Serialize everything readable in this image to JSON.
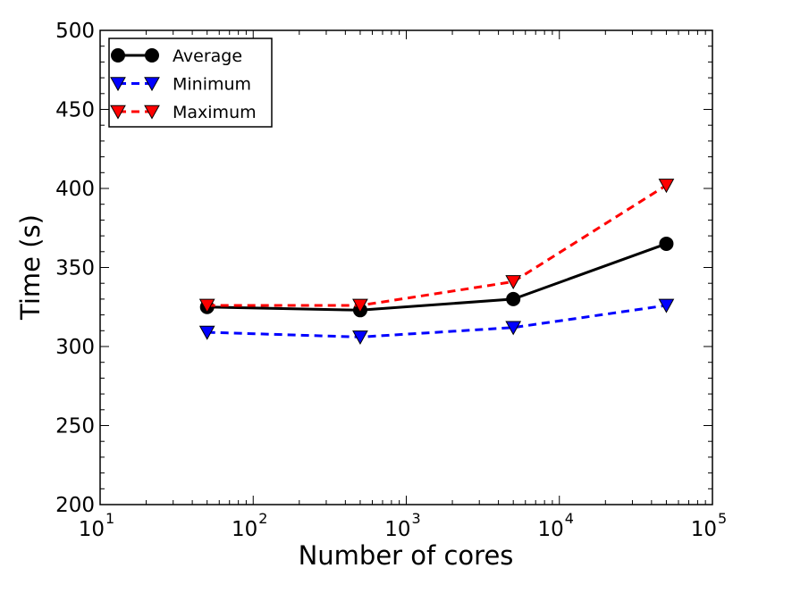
{
  "chart_data": {
    "type": "line",
    "title": "",
    "xlabel": "Number of cores",
    "ylabel": "Time (s)",
    "xscale": "log",
    "xlim": [
      10,
      100000
    ],
    "ylim": [
      200,
      500
    ],
    "x_ticks": [
      {
        "base": "10",
        "exp": "1"
      },
      {
        "base": "10",
        "exp": "2"
      },
      {
        "base": "10",
        "exp": "3"
      },
      {
        "base": "10",
        "exp": "4"
      },
      {
        "base": "10",
        "exp": "5"
      }
    ],
    "y_ticks": [
      "200",
      "250",
      "300",
      "350",
      "400",
      "450",
      "500"
    ],
    "x": [
      50,
      500,
      5000,
      50000
    ],
    "series": [
      {
        "name": "Average",
        "values": [
          325,
          323,
          330,
          365
        ],
        "color": "#000000",
        "linestyle": "solid",
        "marker": "circle"
      },
      {
        "name": "Minimum",
        "values": [
          309,
          306,
          312,
          326
        ],
        "color": "#0000ff",
        "linestyle": "dashed",
        "marker": "triangle-down"
      },
      {
        "name": "Maximum",
        "values": [
          326,
          326,
          341,
          402
        ],
        "color": "#ff0000",
        "linestyle": "dashed",
        "marker": "triangle-down"
      }
    ],
    "legend_position": "top-left",
    "grid": false
  }
}
